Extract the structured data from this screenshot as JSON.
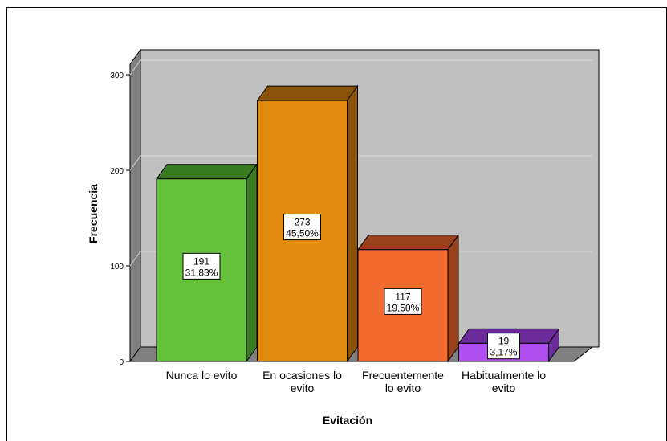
{
  "chart_data": {
    "type": "bar",
    "title": "",
    "xlabel": "Evitación",
    "ylabel": "Frecuencia",
    "ylim": [
      0,
      300
    ],
    "yticks": [
      "0",
      "100",
      "200",
      "300"
    ],
    "grid": true,
    "three_d": true,
    "categories": [
      [
        "Nunca lo evito"
      ],
      [
        "En ocasiones lo",
        "evito"
      ],
      [
        "Frecuentemente",
        "lo evito"
      ],
      [
        "Habitualmente lo",
        "evito"
      ]
    ],
    "values": [
      191,
      273,
      117,
      19
    ],
    "value_labels": [
      "191",
      "273",
      "117",
      "19"
    ],
    "percent_labels": [
      "31,83%",
      "45,50%",
      "19,50%",
      "3,17%"
    ],
    "colors": [
      {
        "front": "#66c23a",
        "side": "#3a7a22"
      },
      {
        "front": "#e08a10",
        "side": "#8a5208"
      },
      {
        "front": "#f26a2e",
        "side": "#98401c"
      },
      {
        "front": "#b04ff0",
        "side": "#6a2a9a"
      }
    ],
    "wall_color": "#c0c0c0",
    "floor_color": "#808080"
  }
}
